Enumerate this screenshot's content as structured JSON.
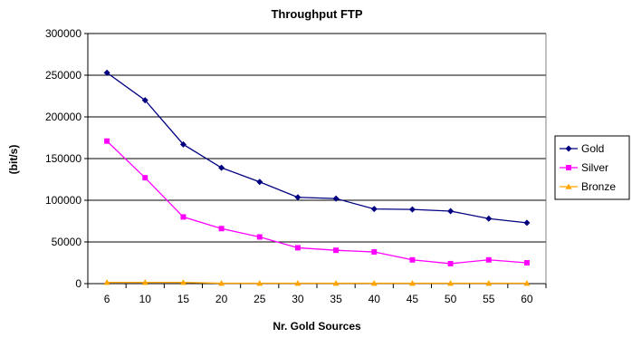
{
  "chart_data": {
    "type": "line",
    "title": "Throughput FTP",
    "xlabel": "Nr. Gold Sources",
    "ylabel": "(bit/s)",
    "categories": [
      "6",
      "10",
      "15",
      "20",
      "25",
      "30",
      "35",
      "40",
      "45",
      "50",
      "55",
      "60"
    ],
    "y_ticks": [
      "0",
      "50000",
      "100000",
      "150000",
      "200000",
      "250000",
      "300000"
    ],
    "ylim": [
      0,
      300000
    ],
    "grid": "horizontal",
    "legend_position": "right",
    "series": [
      {
        "name": "Gold",
        "color": "#000080",
        "marker": "diamond",
        "values": [
          253000,
          220000,
          167000,
          139000,
          122000,
          103500,
          102000,
          89500,
          89000,
          87000,
          78000,
          73000
        ]
      },
      {
        "name": "Silver",
        "color": "#FF00FF",
        "marker": "square",
        "values": [
          171000,
          127000,
          80000,
          66000,
          56000,
          43000,
          40000,
          38000,
          28500,
          24000,
          28500,
          25000
        ]
      },
      {
        "name": "Bronze",
        "color": "#FFA500",
        "marker": "triangle",
        "values": [
          1500,
          1500,
          1500,
          500,
          500,
          500,
          500,
          500,
          500,
          500,
          500,
          500
        ]
      }
    ]
  }
}
